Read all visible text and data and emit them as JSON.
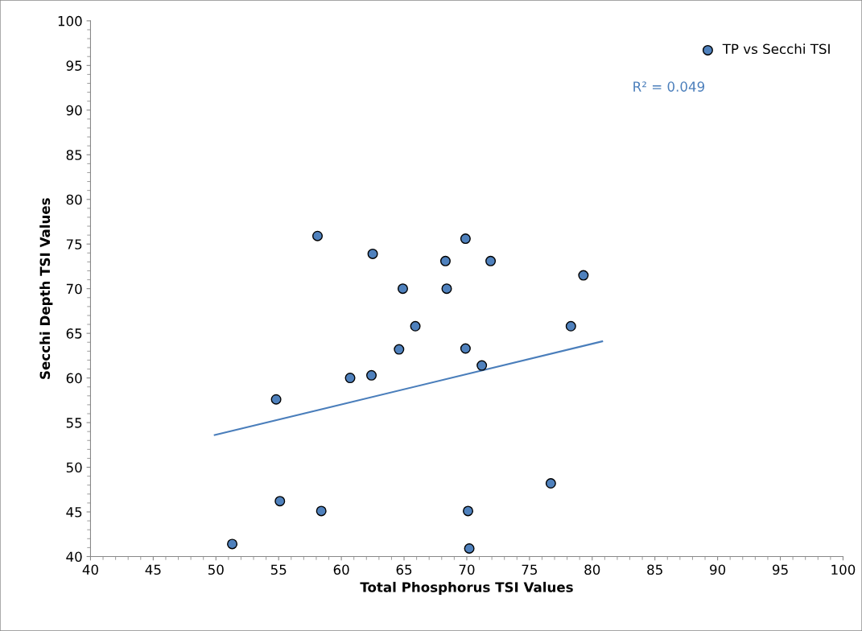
{
  "chart_data": {
    "type": "scatter",
    "xlabel": "Total Phosphorus TSI Values",
    "ylabel": "Secchi Depth TSI Values",
    "xlim": [
      40,
      100
    ],
    "ylim": [
      40,
      100
    ],
    "xticks": [
      40,
      45,
      50,
      55,
      60,
      65,
      70,
      75,
      80,
      85,
      90,
      95,
      100
    ],
    "yticks": [
      40,
      45,
      50,
      55,
      60,
      65,
      70,
      75,
      80,
      85,
      90,
      95,
      100
    ],
    "grid": false,
    "legend": "top right",
    "series": [
      {
        "name": "TP vs Secchi TSI",
        "color": "#4f81bd",
        "marker": "circle",
        "x": [
          51.3,
          54.8,
          55.1,
          58.1,
          58.4,
          60.7,
          62.4,
          62.5,
          64.6,
          64.9,
          65.9,
          68.3,
          68.4,
          69.9,
          69.9,
          70.1,
          70.2,
          71.2,
          71.9,
          76.7,
          78.3,
          79.3
        ],
        "values": [
          41.4,
          57.6,
          46.2,
          75.9,
          45.1,
          60.0,
          60.3,
          73.9,
          63.2,
          70.0,
          65.8,
          73.1,
          70.0,
          63.3,
          75.6,
          45.1,
          40.9,
          61.4,
          73.1,
          48.2,
          65.8,
          71.5
        ]
      },
      {
        "type": "line",
        "marker": "none",
        "color": "#4a7ebb",
        "x": [
          49.9,
          80.8
        ],
        "values": [
          53.6,
          64.1
        ]
      }
    ],
    "annotations": [
      "R² = 0.049"
    ]
  }
}
